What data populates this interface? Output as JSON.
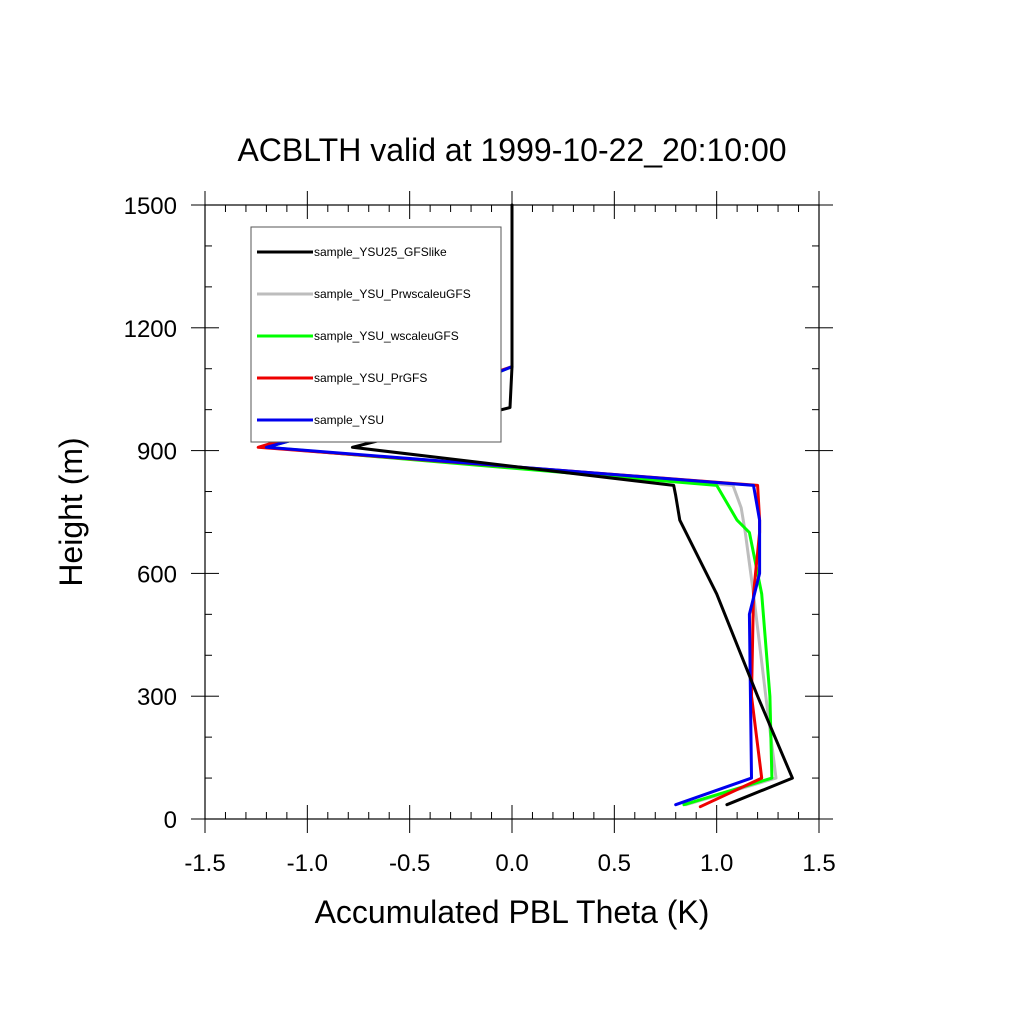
{
  "chart_data": {
    "type": "line",
    "title": "ACBLTH valid at 1999-10-22_20:10:00",
    "xlabel": "Accumulated PBL Theta (K)",
    "ylabel": "Height (m)",
    "xlim": [
      -1.5,
      1.5
    ],
    "ylim": [
      0,
      1500
    ],
    "x_ticks": [
      -1.5,
      -1.0,
      -0.5,
      0.0,
      0.5,
      1.0,
      1.5
    ],
    "x_tick_labels": [
      "-1.5",
      "-1.0",
      "-0.5",
      "0.0",
      "0.5",
      "1.0",
      "1.5"
    ],
    "y_ticks": [
      0,
      300,
      600,
      900,
      1200,
      1500
    ],
    "y_tick_labels": [
      "0",
      "300",
      "600",
      "900",
      "1200",
      "1500"
    ],
    "legend_position": "top-left",
    "series": [
      {
        "name": "sample_YSU25_GFSlike",
        "color": "#000000",
        "x": [
          1.05,
          1.37,
          1.2,
          1.0,
          0.82,
          0.8,
          0.79,
          -0.78,
          -0.01,
          0.0,
          0.0,
          0.0
        ],
        "y": [
          35,
          100,
          300,
          550,
          730,
          790,
          815,
          908,
          1005,
          1105,
          1300,
          1500
        ]
      },
      {
        "name": "sample_YSU_PrwscaleuGFS",
        "color": "#bdbdbd",
        "x": [
          0.85,
          1.29,
          1.24,
          1.18,
          1.14,
          1.12,
          1.08,
          -1.22,
          0.0,
          0.0
        ],
        "y": [
          35,
          100,
          300,
          550,
          700,
          760,
          815,
          908,
          1105,
          1105
        ]
      },
      {
        "name": "sample_YSU_wscaleuGFS",
        "color": "#00ff00",
        "x": [
          0.84,
          1.27,
          1.26,
          1.22,
          1.16,
          1.1,
          1.0,
          -1.2,
          -0.5,
          0.0
        ],
        "y": [
          35,
          100,
          300,
          550,
          700,
          730,
          815,
          908,
          1005,
          1105
        ]
      },
      {
        "name": "sample_YSU_PrGFS",
        "color": "#ee0000",
        "x": [
          0.92,
          1.22,
          1.17,
          1.18,
          1.21,
          1.21,
          1.2,
          -1.24,
          -0.5,
          0.0
        ],
        "y": [
          30,
          100,
          300,
          550,
          700,
          730,
          815,
          908,
          1020,
          1105
        ]
      },
      {
        "name": "sample_YSU",
        "color": "#0000ee",
        "x": [
          0.8,
          1.17,
          1.16,
          1.21,
          1.21,
          1.18,
          -1.2,
          -0.5,
          0.0
        ],
        "y": [
          35,
          100,
          500,
          600,
          730,
          815,
          908,
          1005,
          1105
        ]
      }
    ]
  }
}
